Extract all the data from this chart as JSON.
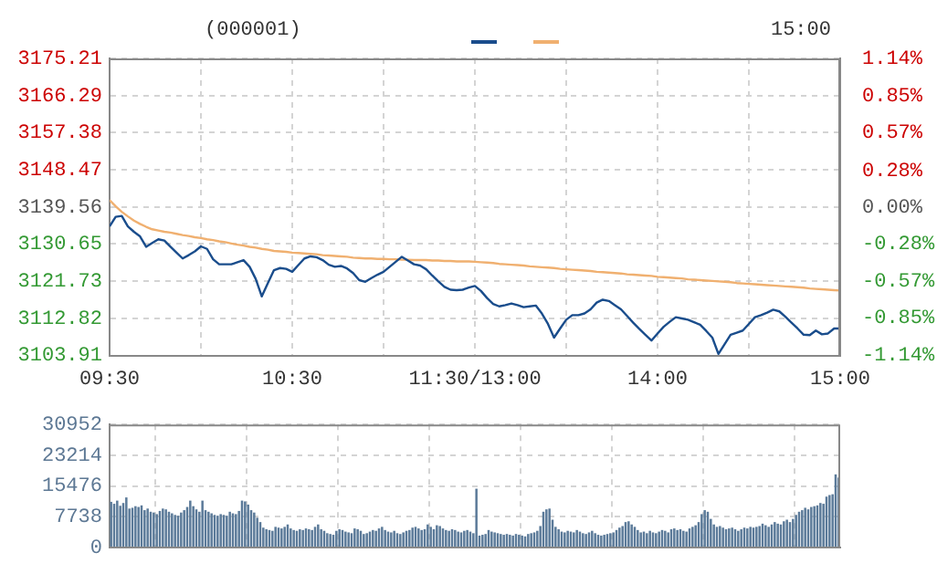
{
  "chart_data": [
    {
      "type": "line",
      "title": "(000001)",
      "annotations": [
        "15:00"
      ],
      "categories": [
        "09:30",
        null,
        null,
        null,
        null,
        null,
        null,
        null,
        null,
        null,
        null,
        null,
        null,
        null,
        null,
        null,
        null,
        null,
        null,
        null,
        null,
        null,
        null,
        null,
        null,
        null,
        null,
        null,
        null,
        null,
        "10:30",
        null,
        null,
        null,
        null,
        null,
        null,
        null,
        null,
        null,
        null,
        null,
        null,
        null,
        null,
        null,
        null,
        null,
        null,
        null,
        null,
        null,
        null,
        null,
        null,
        null,
        null,
        null,
        null,
        null,
        "11:30/13:00",
        null,
        null,
        null,
        null,
        null,
        null,
        null,
        null,
        null,
        null,
        null,
        null,
        null,
        null,
        null,
        null,
        null,
        null,
        null,
        null,
        null,
        null,
        null,
        null,
        null,
        null,
        null,
        null,
        null,
        "14:00",
        null,
        null,
        null,
        null,
        null,
        null,
        null,
        null,
        null,
        null,
        null,
        null,
        null,
        null,
        null,
        null,
        null,
        null,
        null,
        null,
        null,
        null,
        null,
        null,
        null,
        null,
        null,
        null,
        null,
        "15:00"
      ],
      "ylim": [
        3103.91,
        3175.21
      ],
      "yticks": [
        3103.91,
        3112.82,
        3121.73,
        3130.65,
        3139.56,
        3148.47,
        3157.38,
        3166.29,
        3175.21
      ],
      "y2lim": [
        -1.14,
        1.14
      ],
      "y2ticks": [
        {
          "value": -1.14,
          "label": "-1.14%"
        },
        {
          "value": -0.85,
          "label": "-0.85%"
        },
        {
          "value": -0.57,
          "label": "-0.57%"
        },
        {
          "value": -0.28,
          "label": "-0.28%"
        },
        {
          "value": 0,
          "label": "0.00%"
        },
        {
          "value": 0.28,
          "label": "0.28%"
        },
        {
          "value": 0.57,
          "label": "0.57%"
        },
        {
          "value": 0.85,
          "label": "0.85%"
        },
        {
          "value": 1.14,
          "label": "1.14%"
        }
      ],
      "grid": true,
      "series": [
        {
          "color": "#1a4d8c",
          "values": [
            3134.9,
            3137.2,
            3137.4,
            3134.9,
            3133.6,
            3132.5,
            3130.0,
            3130.9,
            3131.8,
            3131.5,
            3130.0,
            3128.6,
            3127.2,
            3128.0,
            3128.9,
            3130.1,
            3129.5,
            3127.0,
            3125.8,
            3125.8,
            3125.8,
            3126.3,
            3126.8,
            3125.2,
            3122.3,
            3118.1,
            3121.3,
            3124.4,
            3124.9,
            3124.7,
            3124.0,
            3125.6,
            3127.2,
            3127.7,
            3127.5,
            3126.8,
            3125.7,
            3125.2,
            3125.4,
            3124.8,
            3123.7,
            3122.0,
            3121.6,
            3122.5,
            3123.3,
            3124.0,
            3125.2,
            3126.4,
            3127.6,
            3126.7,
            3125.8,
            3125.5,
            3124.6,
            3123.1,
            3121.7,
            3120.4,
            3119.7,
            3119.6,
            3119.7,
            3120.2,
            3120.6,
            3119.4,
            3117.7,
            3116.3,
            3115.7,
            3116.0,
            3116.4,
            3116.0,
            3115.5,
            3115.7,
            3115.9,
            3114.0,
            3111.5,
            3108.2,
            3110.4,
            3112.5,
            3113.6,
            3113.6,
            3114.0,
            3115.0,
            3116.6,
            3117.3,
            3117.0,
            3116.0,
            3115.0,
            3113.4,
            3111.8,
            3110.3,
            3108.9,
            3107.5,
            3109.2,
            3110.8,
            3112.0,
            3113.1,
            3112.8,
            3112.5,
            3111.9,
            3111.3,
            3109.8,
            3108.2,
            3104.3,
            3106.6,
            3108.9,
            3109.4,
            3109.9,
            3111.5,
            3113.1,
            3113.6,
            3114.2,
            3114.9,
            3114.5,
            3113.2,
            3111.8,
            3110.4,
            3108.9,
            3108.8,
            3109.9,
            3109.0,
            3109.2,
            3110.4,
            3110.4
          ]
        },
        {
          "color": "#f0b070",
          "values": [
            3141.2,
            3139.7,
            3138.4,
            3137.3,
            3136.3,
            3135.5,
            3134.8,
            3134.2,
            3133.9,
            3133.6,
            3133.4,
            3133.1,
            3132.8,
            3132.6,
            3132.3,
            3132.1,
            3131.8,
            3131.6,
            3131.3,
            3131.1,
            3130.8,
            3130.5,
            3130.3,
            3130.0,
            3129.8,
            3129.5,
            3129.3,
            3129.0,
            3128.9,
            3128.8,
            3128.6,
            3128.5,
            3128.4,
            3128.3,
            3128.2,
            3128.0,
            3127.9,
            3127.8,
            3127.7,
            3127.6,
            3127.4,
            3127.3,
            3127.2,
            3127.2,
            3127.1,
            3127.1,
            3127.0,
            3127.0,
            3126.9,
            3126.9,
            3126.8,
            3126.8,
            3126.8,
            3126.7,
            3126.7,
            3126.6,
            3126.6,
            3126.5,
            3126.5,
            3126.5,
            3126.4,
            3126.3,
            3126.2,
            3126.1,
            3125.9,
            3125.8,
            3125.7,
            3125.6,
            3125.5,
            3125.3,
            3125.2,
            3125.1,
            3125.0,
            3124.9,
            3124.7,
            3124.6,
            3124.5,
            3124.4,
            3124.3,
            3124.2,
            3124.0,
            3123.9,
            3123.8,
            3123.7,
            3123.6,
            3123.4,
            3123.3,
            3123.2,
            3123.1,
            3123.0,
            3122.8,
            3122.7,
            3122.6,
            3122.5,
            3122.4,
            3122.2,
            3122.1,
            3122.0,
            3121.9,
            3121.8,
            3121.7,
            3121.6,
            3121.5,
            3121.3,
            3121.2,
            3121.1,
            3121.0,
            3120.9,
            3120.8,
            3120.7,
            3120.6,
            3120.5,
            3120.4,
            3120.3,
            3120.2,
            3120.0,
            3119.9,
            3119.8,
            3119.7,
            3119.6,
            3119.5
          ]
        }
      ]
    },
    {
      "type": "bar",
      "color": "#5b7a99",
      "tick_labels": "y",
      "grid": true,
      "categories": [
        null,
        null,
        null,
        null,
        null,
        null,
        null,
        null,
        null,
        null,
        null,
        null,
        null,
        null,
        null,
        null,
        null,
        null,
        null,
        null,
        null,
        null,
        null,
        null,
        null,
        null,
        null,
        null,
        null,
        null,
        null,
        null,
        null,
        null,
        null,
        null,
        null,
        null,
        null,
        null,
        null,
        null,
        null,
        null,
        null,
        null,
        null,
        null,
        null,
        null,
        null,
        null,
        null,
        null,
        null,
        null,
        null,
        null,
        null,
        null,
        null,
        null,
        null,
        null,
        null,
        null,
        null,
        null,
        null,
        null,
        null,
        null,
        null,
        null,
        null,
        null,
        null,
        null,
        null,
        null,
        null,
        null,
        null,
        null,
        null,
        null,
        null,
        null,
        null,
        null,
        null,
        null,
        null,
        null,
        null,
        null,
        null,
        null,
        null,
        null,
        null,
        null,
        null,
        null,
        null,
        null,
        null,
        null,
        null,
        null,
        null,
        null,
        null,
        null,
        null,
        null,
        null,
        null,
        null,
        null,
        null,
        null,
        null,
        null,
        null,
        null,
        null,
        null,
        null,
        null,
        null,
        null,
        null,
        null,
        null,
        null,
        null,
        null,
        null,
        null,
        null,
        null,
        null,
        null,
        null,
        null,
        null,
        null,
        null,
        null,
        null,
        null,
        null,
        null,
        null,
        null,
        null,
        null,
        null,
        null,
        null,
        null,
        null,
        null,
        null,
        null,
        null,
        null,
        null,
        null,
        null,
        null,
        null,
        null,
        null,
        null,
        null,
        null,
        null,
        null,
        null,
        null,
        null,
        null,
        null,
        null,
        null,
        null,
        null,
        null,
        null,
        null,
        null,
        null,
        null,
        null,
        null,
        null,
        null,
        null,
        null,
        null,
        null,
        null,
        null,
        null,
        null,
        null,
        null,
        null,
        null,
        null,
        null,
        null,
        null,
        null,
        null,
        null,
        null,
        null,
        null,
        null,
        null,
        null,
        null,
        null,
        null,
        null,
        null,
        null,
        null,
        null,
        null,
        null,
        null,
        null,
        null,
        null,
        null,
        null
      ],
      "ylim": [
        0,
        30952
      ],
      "yticks": [
        0,
        7738,
        15476,
        23214,
        30952
      ],
      "values": [
        11500,
        11000,
        11800,
        10500,
        11200,
        12600,
        9800,
        10000,
        10400,
        10200,
        10600,
        9400,
        9800,
        9000,
        8800,
        8400,
        9200,
        9800,
        9600,
        9000,
        8600,
        8200,
        8000,
        8800,
        9400,
        10200,
        11800,
        10400,
        9600,
        9000,
        11800,
        9400,
        9000,
        8600,
        8200,
        8000,
        8400,
        8200,
        8000,
        9000,
        8600,
        8400,
        9200,
        11800,
        11600,
        10800,
        9400,
        8800,
        7500,
        6400,
        5000,
        4600,
        4400,
        4200,
        5200,
        5000,
        4800,
        5200,
        5800,
        4800,
        4400,
        4200,
        4600,
        4400,
        4800,
        4600,
        4400,
        5200,
        5800,
        4600,
        4200,
        3600,
        3400,
        3200,
        4200,
        4600,
        4400,
        4000,
        3800,
        3600,
        4800,
        4600,
        4200,
        3400,
        3600,
        4000,
        4400,
        4200,
        4800,
        5200,
        4400,
        4000,
        3800,
        4200,
        3600,
        3400,
        3800,
        4200,
        4400,
        5000,
        5200,
        4800,
        4400,
        4600,
        5800,
        5200,
        4600,
        5600,
        5400,
        4800,
        4400,
        4200,
        4600,
        4400,
        4000,
        3800,
        4200,
        4400,
        4000,
        3600,
        14800,
        3000,
        3200,
        3400,
        4400,
        4000,
        3800,
        3600,
        3400,
        3200,
        3400,
        3200,
        3000,
        3400,
        3200,
        3000,
        2800,
        3400,
        3600,
        3800,
        4200,
        5400,
        9000,
        9600,
        9800,
        7000,
        5200,
        4600,
        4000,
        3800,
        4200,
        4000,
        3800,
        4400,
        4000,
        3600,
        3400,
        3800,
        4200,
        3600,
        3200,
        3000,
        3200,
        3400,
        3600,
        3800,
        4400,
        5000,
        5400,
        6400,
        6600,
        5800,
        5200,
        4400,
        3800,
        4000,
        3600,
        4200,
        3800,
        3600,
        4000,
        4400,
        4200,
        3800,
        4600,
        4800,
        4400,
        4600,
        4200,
        4000,
        4800,
        5200,
        5600,
        6400,
        8400,
        9400,
        9000,
        7200,
        5800,
        5200,
        5400,
        5000,
        4600,
        4800,
        5000,
        4600,
        4200,
        4600,
        5000,
        4800,
        5200,
        5000,
        5200,
        5400,
        6000,
        5600,
        5200,
        5800,
        6400,
        6000,
        5800,
        6600,
        7000,
        6400,
        7200,
        8200,
        9000,
        9400,
        10000,
        9600,
        10200,
        10400,
        10600,
        11200,
        11000,
        12800,
        13200,
        13400,
        18400,
        17600
      ]
    }
  ]
}
